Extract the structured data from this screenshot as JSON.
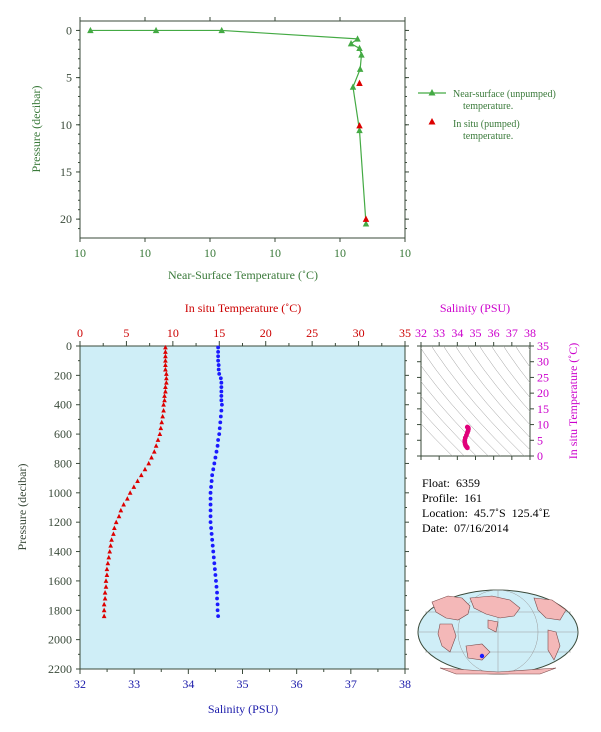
{
  "chart_data": [
    {
      "type": "line",
      "xlabel": "Near-Surface Temperature (˚C)",
      "ylabel": "Pressure (decibar)",
      "x_tick_labels": [
        "10",
        "10",
        "10",
        "10",
        "10",
        "10"
      ],
      "y_ticks": [
        0,
        5,
        10,
        15,
        20
      ],
      "xlim": [
        0,
        5
      ],
      "ylim": [
        22,
        -1
      ],
      "grid": false,
      "legend_placement": "right",
      "series": [
        {
          "name": "Near-surface (unpumped) temperature.",
          "color": "#44aa44",
          "marker": "triangle",
          "points": [
            [
              0.16,
              0
            ],
            [
              1.17,
              0
            ],
            [
              2.18,
              0
            ],
            [
              4.27,
              0.9
            ],
            [
              4.17,
              1.4
            ],
            [
              4.3,
              1.9
            ],
            [
              4.33,
              2.6
            ],
            [
              4.31,
              4.1
            ],
            [
              4.2,
              6
            ],
            [
              4.3,
              10.6
            ],
            [
              4.4,
              20.5
            ]
          ]
        },
        {
          "name": "In situ (pumped) temperature.",
          "color": "#dd0000",
          "marker": "triangle",
          "points": [
            [
              4.3,
              5.6
            ],
            [
              4.3,
              10.1
            ],
            [
              4.4,
              20
            ]
          ]
        }
      ]
    },
    {
      "type": "scatter",
      "xlabel": "Salinity (PSU)",
      "x2label": "In situ Temperature (˚C)",
      "ylabel": "Pressure (decibar)",
      "xlim": [
        32,
        38
      ],
      "x2lim": [
        0,
        35
      ],
      "ylim": [
        2200,
        0
      ],
      "x_ticks": [
        32,
        33,
        34,
        35,
        36,
        37,
        38
      ],
      "x2_ticks": [
        0,
        5,
        10,
        15,
        20,
        25,
        30,
        35
      ],
      "y_ticks": [
        0,
        200,
        400,
        600,
        800,
        1000,
        1200,
        1400,
        1600,
        1800,
        2000,
        2200
      ],
      "background": "#cfeef7",
      "series": [
        {
          "name": "",
          "color": "#dd0000",
          "marker": "triangle",
          "axis": "top",
          "points": [
            [
              9.2,
              10
            ],
            [
              9.2,
              40
            ],
            [
              9.2,
              70
            ],
            [
              9.2,
              100
            ],
            [
              9.2,
              130
            ],
            [
              9.2,
              160
            ],
            [
              9.3,
              190
            ],
            [
              9.3,
              220
            ],
            [
              9.3,
              250
            ],
            [
              9.2,
              280
            ],
            [
              9.2,
              310
            ],
            [
              9.1,
              340
            ],
            [
              9.1,
              370
            ],
            [
              9.0,
              400
            ],
            [
              9.0,
              440
            ],
            [
              8.9,
              480
            ],
            [
              8.8,
              520
            ],
            [
              8.7,
              560
            ],
            [
              8.6,
              600
            ],
            [
              8.4,
              640
            ],
            [
              8.2,
              680
            ],
            [
              8.0,
              720
            ],
            [
              7.7,
              760
            ],
            [
              7.4,
              800
            ],
            [
              7.0,
              840
            ],
            [
              6.6,
              880
            ],
            [
              6.2,
              920
            ],
            [
              5.8,
              960
            ],
            [
              5.4,
              1000
            ],
            [
              5.1,
              1040
            ],
            [
              4.7,
              1080
            ],
            [
              4.4,
              1120
            ],
            [
              4.2,
              1160
            ],
            [
              3.9,
              1200
            ],
            [
              3.7,
              1240
            ],
            [
              3.6,
              1280
            ],
            [
              3.4,
              1320
            ],
            [
              3.3,
              1360
            ],
            [
              3.2,
              1400
            ],
            [
              3.1,
              1440
            ],
            [
              3.0,
              1480
            ],
            [
              2.9,
              1520
            ],
            [
              2.9,
              1560
            ],
            [
              2.8,
              1600
            ],
            [
              2.8,
              1640
            ],
            [
              2.7,
              1680
            ],
            [
              2.7,
              1720
            ],
            [
              2.6,
              1760
            ],
            [
              2.6,
              1800
            ],
            [
              2.6,
              1840
            ]
          ]
        },
        {
          "name": "",
          "color": "#1a1aff",
          "marker": "circle",
          "axis": "bottom",
          "points": [
            [
              34.55,
              10
            ],
            [
              34.55,
              40
            ],
            [
              34.55,
              70
            ],
            [
              34.55,
              100
            ],
            [
              34.56,
              130
            ],
            [
              34.56,
              160
            ],
            [
              34.57,
              190
            ],
            [
              34.6,
              220
            ],
            [
              34.61,
              250
            ],
            [
              34.61,
              280
            ],
            [
              34.61,
              310
            ],
            [
              34.61,
              340
            ],
            [
              34.61,
              370
            ],
            [
              34.62,
              400
            ],
            [
              34.61,
              440
            ],
            [
              34.6,
              480
            ],
            [
              34.59,
              520
            ],
            [
              34.58,
              560
            ],
            [
              34.57,
              600
            ],
            [
              34.55,
              640
            ],
            [
              34.54,
              680
            ],
            [
              34.52,
              720
            ],
            [
              34.5,
              760
            ],
            [
              34.48,
              800
            ],
            [
              34.46,
              840
            ],
            [
              34.44,
              880
            ],
            [
              34.43,
              920
            ],
            [
              34.42,
              960
            ],
            [
              34.41,
              1000
            ],
            [
              34.41,
              1040
            ],
            [
              34.41,
              1080
            ],
            [
              34.41,
              1120
            ],
            [
              34.41,
              1160
            ],
            [
              34.41,
              1200
            ],
            [
              34.42,
              1240
            ],
            [
              34.43,
              1280
            ],
            [
              34.44,
              1320
            ],
            [
              34.45,
              1360
            ],
            [
              34.46,
              1400
            ],
            [
              34.47,
              1440
            ],
            [
              34.48,
              1480
            ],
            [
              34.49,
              1520
            ],
            [
              34.5,
              1560
            ],
            [
              34.51,
              1600
            ],
            [
              34.52,
              1640
            ],
            [
              34.53,
              1680
            ],
            [
              34.53,
              1720
            ],
            [
              34.54,
              1760
            ],
            [
              34.54,
              1800
            ],
            [
              34.55,
              1840
            ]
          ]
        }
      ]
    },
    {
      "type": "scatter",
      "xlabel": "Salinity (PSU)",
      "ylabel": "In situ Temperature (˚C)",
      "xlim": [
        32,
        38
      ],
      "ylim": [
        0,
        35
      ],
      "x_ticks": [
        32,
        33,
        34,
        35,
        36,
        37,
        38
      ],
      "y_ticks": [
        0,
        5,
        10,
        15,
        20,
        25,
        30,
        35
      ],
      "series": [
        {
          "name": "",
          "color": "#e0007a",
          "points": [
            [
              34.55,
              9.2
            ],
            [
              34.6,
              9.0
            ],
            [
              34.61,
              8.6
            ],
            [
              34.59,
              8.0
            ],
            [
              34.55,
              7.4
            ],
            [
              34.5,
              6.6
            ],
            [
              34.44,
              5.8
            ],
            [
              34.41,
              5.0
            ],
            [
              34.41,
              4.4
            ],
            [
              34.43,
              3.8
            ],
            [
              34.46,
              3.3
            ],
            [
              34.5,
              3.0
            ],
            [
              34.53,
              2.8
            ],
            [
              34.55,
              2.6
            ]
          ]
        }
      ]
    }
  ],
  "legend": {
    "unpumped": [
      "Near-surface (unpumped)",
      "temperature."
    ],
    "pumped": [
      "In situ (pumped)",
      "temperature."
    ]
  },
  "info": {
    "float": "Float:  6359",
    "profile": "Profile:  161",
    "location": "Location:  45.7˚S  125.4˚E",
    "date": "Date:  07/16/2014"
  },
  "colors": {
    "green": "#3a7a3a",
    "marker_green": "#44aa44",
    "red": "#cc0000",
    "blue": "#1a1aaa",
    "magenta": "#cc00cc",
    "panel_bg": "#cfeef7",
    "land": "#f4b8b8",
    "ocean": "#cfeef7"
  },
  "map": {
    "location_marker_color": "#1a1aff"
  }
}
